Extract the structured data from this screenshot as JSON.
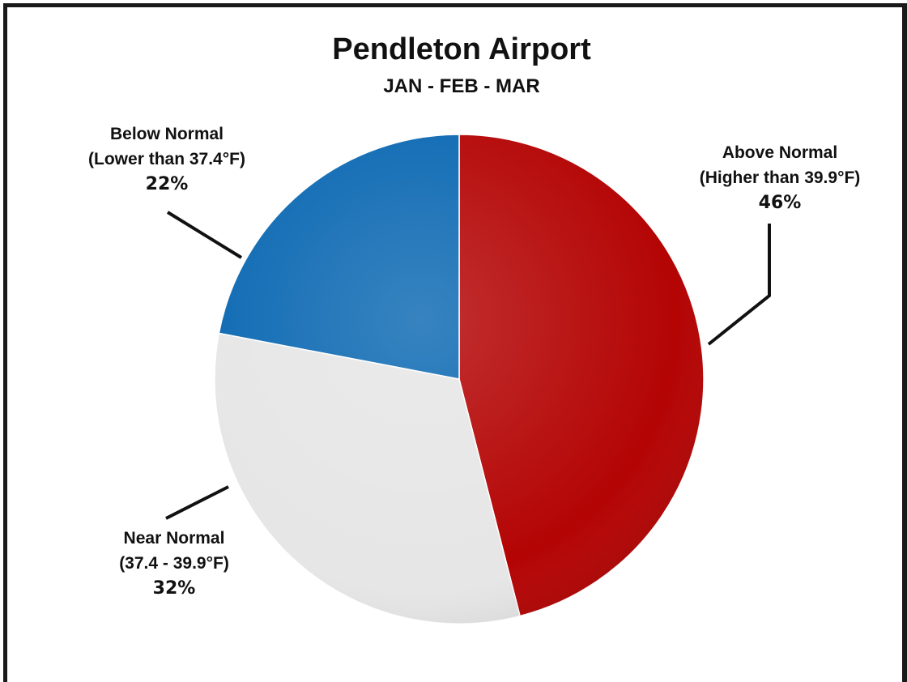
{
  "chart_data": {
    "type": "pie",
    "title": "Pendleton Airport",
    "subtitle": "JAN - FEB - MAR",
    "slices": [
      {
        "label": "Above Normal",
        "detail": "(Higher than 39.9°F)",
        "pct_label": "46%",
        "value": 46,
        "color": "#b40404"
      },
      {
        "label": "Near Normal",
        "detail": "(37.4 - 39.9°F)",
        "pct_label": "32%",
        "value": 32,
        "color": "#e6e6e6"
      },
      {
        "label": "Below Normal",
        "detail": "(Lower than 37.4°F)",
        "pct_label": "22%",
        "value": 22,
        "color": "#0b68b2"
      }
    ],
    "start_angle_deg": 0,
    "direction": "clockwise"
  }
}
